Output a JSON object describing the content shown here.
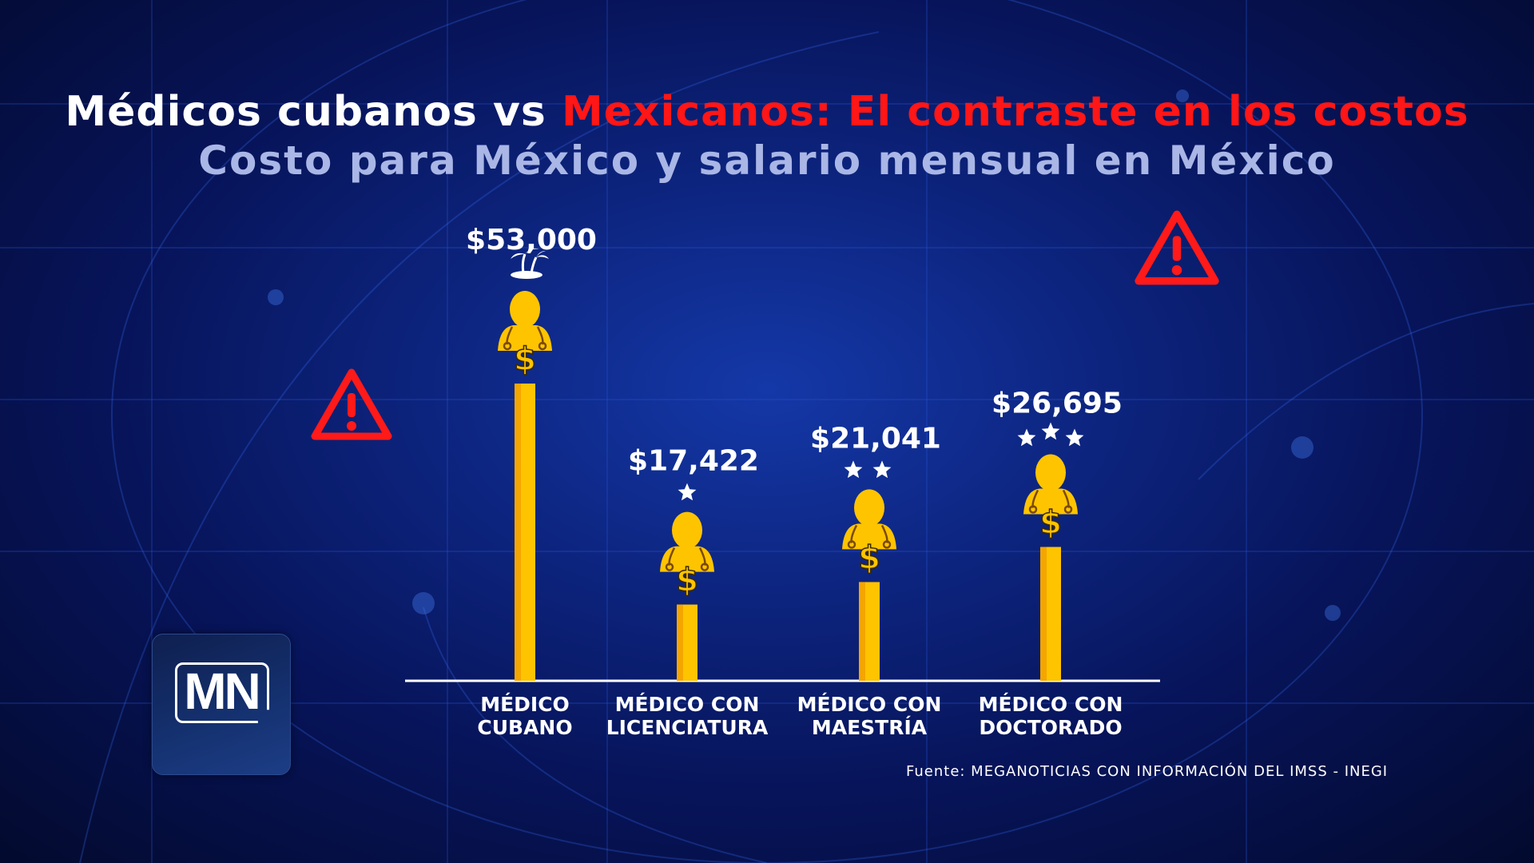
{
  "header": {
    "title_white": "Médicos cubanos vs",
    "title_red": "Mexicanos: El contraste en los costos",
    "subtitle": "Costo para México y salario mensual en México"
  },
  "logo": {
    "text": "MN"
  },
  "source": "Fuente: MEGANOTICIAS CON INFORMACIÓN DEL IMSS - INEGI",
  "colors": {
    "bar": "#ffc400",
    "bar_dark": "#f5a500",
    "title_red": "#ff1616",
    "subtitle": "#a9b6e6",
    "warning": "#ff1a1a"
  },
  "icons": [
    "warning-icon",
    "doctor-dollar-icon",
    "star-icon",
    "palm-island-icon"
  ],
  "chart_data": {
    "type": "bar",
    "categories": [
      [
        "MÉDICO",
        "CUBANO"
      ],
      [
        "MÉDICO CON",
        "LICENCIATURA"
      ],
      [
        "MÉDICO CON",
        "MAESTRÍA"
      ],
      [
        "MÉDICO CON",
        "DOCTORADO"
      ]
    ],
    "values": [
      53000,
      17422,
      21041,
      26695
    ],
    "value_labels": [
      "$53,000",
      "$17,422",
      "$21,041",
      "$26,695"
    ],
    "badges": [
      "palm-island",
      "1-star",
      "2-star",
      "3-star"
    ],
    "ylim": [
      0,
      60000
    ],
    "grid": false,
    "legend": "none"
  }
}
